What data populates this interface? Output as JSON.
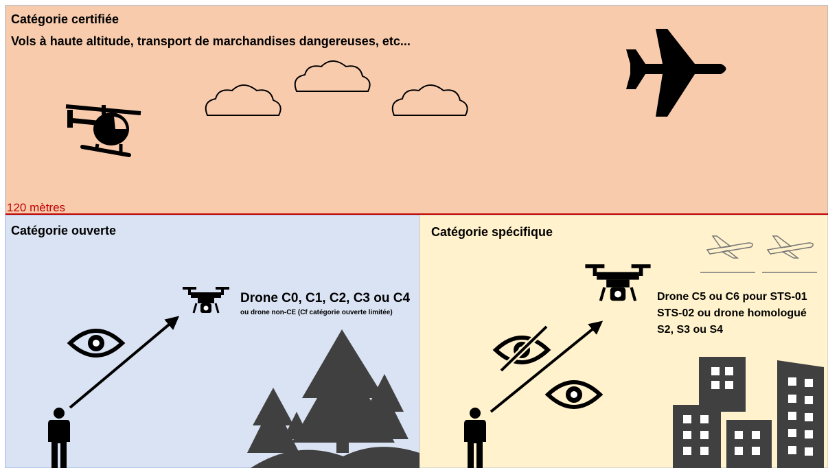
{
  "top": {
    "title": "Catégorie certifiée",
    "subtitle": "Vols à haute altitude, transport de marchandises dangereuses, etc...",
    "limit": "120 mètres"
  },
  "open": {
    "title": "Catégorie ouverte",
    "drone": "Drone C0, C1, C2, C3 ou C4",
    "note": "ou drone non-CE (Cf catégorie ouverte limitée)"
  },
  "specific": {
    "title": "Catégorie spécifique",
    "lines": [
      "Drone C5 ou C6 pour STS-01",
      "STS-02 ou drone homologué",
      "S2, S3 ou S4"
    ]
  }
}
